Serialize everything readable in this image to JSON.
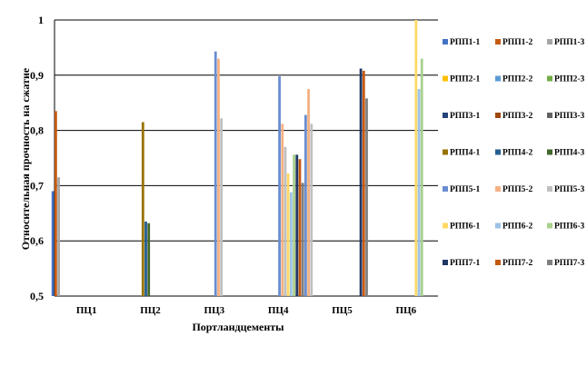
{
  "chart_data": {
    "type": "bar",
    "xlabel": "Портландцементы",
    "ylabel": "Относительная прочность на сжатие",
    "ylim": [
      0.5,
      1.0
    ],
    "yticks": [
      "0,5",
      "0,6",
      "0,7",
      "0,8",
      "0,9",
      "1"
    ],
    "grid": true,
    "legend_position": "right",
    "categories": [
      "ПЦ1",
      "ПЦ2",
      "ПЦ3",
      "ПЦ4",
      "ПЦ5",
      "ПЦ6"
    ],
    "series": [
      {
        "name": "РПП1-1",
        "color": "#4472C4",
        "values": [
          0.69,
          null,
          null,
          null,
          null,
          null
        ]
      },
      {
        "name": "РПП1-2",
        "color": "#C55A11",
        "values": [
          0.835,
          null,
          null,
          null,
          null,
          null
        ]
      },
      {
        "name": "РПП1-3",
        "color": "#A5A5A5",
        "values": [
          0.715,
          null,
          null,
          null,
          null,
          null
        ]
      },
      {
        "name": "РПП2-1",
        "color": "#FFC000",
        "values": [
          null,
          null,
          null,
          null,
          null,
          null
        ]
      },
      {
        "name": "РПП2-2",
        "color": "#5B9BD5",
        "values": [
          null,
          null,
          null,
          null,
          null,
          null
        ]
      },
      {
        "name": "РПП2-3",
        "color": "#70AD47",
        "values": [
          null,
          null,
          null,
          null,
          null,
          null
        ]
      },
      {
        "name": "РПП3-1",
        "color": "#264478",
        "values": [
          null,
          null,
          null,
          null,
          null,
          null
        ]
      },
      {
        "name": "РПП3-2",
        "color": "#9E480E",
        "values": [
          null,
          null,
          null,
          null,
          null,
          null
        ]
      },
      {
        "name": "РПП3-3",
        "color": "#636363",
        "values": [
          null,
          null,
          null,
          null,
          null,
          null
        ]
      },
      {
        "name": "РПП4-1",
        "color": "#997300",
        "values": [
          null,
          0.815,
          null,
          null,
          null,
          null
        ]
      },
      {
        "name": "РПП4-2",
        "color": "#255E91",
        "values": [
          null,
          0.635,
          null,
          null,
          null,
          null
        ]
      },
      {
        "name": "РПП4-3",
        "color": "#43682B",
        "values": [
          null,
          0.632,
          null,
          null,
          null,
          null
        ]
      },
      {
        "name": "РПП5-1",
        "color": "#698ED0",
        "values": [
          null,
          null,
          0.943,
          0.898,
          null,
          null
        ]
      },
      {
        "name": "РПП5-2",
        "color": "#F4B183",
        "values": [
          null,
          null,
          0.93,
          0.812,
          null,
          null
        ]
      },
      {
        "name": "РПП5-3",
        "color": "#C0C0C0",
        "values": [
          null,
          null,
          0.822,
          0.77,
          null,
          null
        ]
      },
      {
        "name": "РПП6-1",
        "color": "#FFD966",
        "values": [
          null,
          null,
          null,
          0.722,
          null,
          1.0
        ]
      },
      {
        "name": "РПП6-2",
        "color": "#9DC3E6",
        "values": [
          null,
          null,
          null,
          0.688,
          null,
          0.875
        ]
      },
      {
        "name": "РПП6-3",
        "color": "#A9D18E",
        "values": [
          null,
          null,
          null,
          0.756,
          null,
          0.93
        ]
      },
      {
        "name": "РПП7-1",
        "color": "#1F3864",
        "values": [
          null,
          null,
          null,
          0.756,
          0.912,
          null
        ]
      },
      {
        "name": "РПП7-2",
        "color": "#C55A11",
        "values": [
          null,
          null,
          null,
          0.748,
          0.908,
          null
        ]
      },
      {
        "name": "РПП7-3",
        "color": "#7F7F7F",
        "values": [
          null,
          null,
          null,
          0.705,
          0.858,
          null
        ]
      }
    ],
    "extra_bars": [
      {
        "category": "ПЦ4",
        "color": "#698ED0",
        "value": 0.828
      },
      {
        "category": "ПЦ4",
        "color": "#F4B183",
        "value": 0.875
      },
      {
        "category": "ПЦ4",
        "color": "#C0C0C0",
        "value": 0.812
      }
    ]
  }
}
